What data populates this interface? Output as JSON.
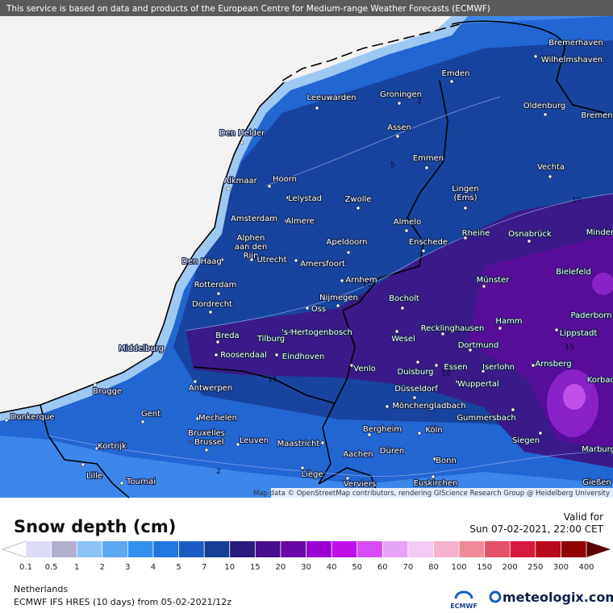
{
  "header": {
    "disclaimer": "This service is based on data and products of the European Centre for Medium-range Weather Forecasts (ECMWF)"
  },
  "map": {
    "cities": [
      {
        "lines": [
          "Bremerhaven"
        ]
      },
      {
        "lines": [
          "Wilhelmshaven"
        ]
      },
      {
        "lines": [
          "Emden"
        ]
      },
      {
        "lines": [
          "Leeuwarden"
        ]
      },
      {
        "lines": [
          "Groningen"
        ]
      },
      {
        "lines": [
          "Oldenburg"
        ]
      },
      {
        "lines": [
          "Bremen"
        ]
      },
      {
        "lines": [
          "Den Helder"
        ]
      },
      {
        "lines": [
          "Assen"
        ]
      },
      {
        "lines": [
          "Emmen"
        ]
      },
      {
        "lines": [
          "Vechta"
        ]
      },
      {
        "lines": [
          "Alkmaar"
        ]
      },
      {
        "lines": [
          "Hoorn"
        ]
      },
      {
        "lines": [
          "Lingen",
          "(Ems)"
        ]
      },
      {
        "lines": [
          "Lelystad"
        ]
      },
      {
        "lines": [
          "Zwolle"
        ]
      },
      {
        "lines": [
          "Amsterdam"
        ]
      },
      {
        "lines": [
          "Almere"
        ]
      },
      {
        "lines": [
          "Almelo"
        ]
      },
      {
        "lines": [
          "Rheine"
        ]
      },
      {
        "lines": [
          "Osnabrück"
        ]
      },
      {
        "lines": [
          "Minden"
        ]
      },
      {
        "lines": [
          "Alphen",
          "aan den",
          "Rijn"
        ]
      },
      {
        "lines": [
          "Apeldoorn"
        ]
      },
      {
        "lines": [
          "Enschede"
        ]
      },
      {
        "lines": [
          "Utrecht"
        ]
      },
      {
        "lines": [
          "Amersfoort"
        ]
      },
      {
        "lines": [
          "Den Haag"
        ]
      },
      {
        "lines": [
          "Bielefeld"
        ]
      },
      {
        "lines": [
          "Arnhem"
        ]
      },
      {
        "lines": [
          "Münster"
        ]
      },
      {
        "lines": [
          "Rotterdam"
        ]
      },
      {
        "lines": [
          "Nijmegen"
        ]
      },
      {
        "lines": [
          "Bocholt"
        ]
      },
      {
        "lines": [
          "Dordrecht"
        ]
      },
      {
        "lines": [
          "Oss"
        ]
      },
      {
        "lines": [
          "Paderborn"
        ]
      },
      {
        "lines": [
          "Hamm"
        ]
      },
      {
        "lines": [
          "Recklinghausen"
        ]
      },
      {
        "lines": [
          "'s-Hertogenbosch"
        ]
      },
      {
        "lines": [
          "Breda"
        ]
      },
      {
        "lines": [
          "Tilburg"
        ]
      },
      {
        "lines": [
          "Wesel"
        ]
      },
      {
        "lines": [
          "Lippstadt"
        ]
      },
      {
        "lines": [
          "Middelburg"
        ]
      },
      {
        "lines": [
          "Dortmund"
        ]
      },
      {
        "lines": [
          "Roosendaal"
        ]
      },
      {
        "lines": [
          "Eindhoven"
        ]
      },
      {
        "lines": [
          "Essen"
        ]
      },
      {
        "lines": [
          "Iserlohn"
        ]
      },
      {
        "lines": [
          "Arnsberg"
        ]
      },
      {
        "lines": [
          "Venlo"
        ]
      },
      {
        "lines": [
          "Duisburg"
        ]
      },
      {
        "lines": [
          "Korbach"
        ]
      },
      {
        "lines": [
          "Wuppertal"
        ]
      },
      {
        "lines": [
          "Brugge"
        ]
      },
      {
        "lines": [
          "Antwerpen"
        ]
      },
      {
        "lines": [
          "Düsseldorf"
        ]
      },
      {
        "lines": [
          "Mönchengladbach"
        ]
      },
      {
        "lines": [
          "Dunkerque"
        ]
      },
      {
        "lines": [
          "Gent"
        ]
      },
      {
        "lines": [
          "Mechelen"
        ]
      },
      {
        "lines": [
          "Gummersbach"
        ]
      },
      {
        "lines": [
          "Bruxelles",
          "- Brussel"
        ]
      },
      {
        "lines": [
          "Leuven"
        ]
      },
      {
        "lines": [
          "Maastricht"
        ]
      },
      {
        "lines": [
          "Bergheim"
        ]
      },
      {
        "lines": [
          "Köln"
        ]
      },
      {
        "lines": [
          "Siegen"
        ]
      },
      {
        "lines": [
          "Marburg"
        ]
      },
      {
        "lines": [
          "Kortrijk"
        ]
      },
      {
        "lines": [
          "Aachen"
        ]
      },
      {
        "lines": [
          "Düren"
        ]
      },
      {
        "lines": [
          "Bonn"
        ]
      },
      {
        "lines": [
          "Lille"
        ]
      },
      {
        "lines": [
          "Tournai"
        ]
      },
      {
        "lines": [
          "Liège"
        ]
      },
      {
        "lines": [
          "Verviers"
        ]
      },
      {
        "lines": [
          "Euskirchen"
        ]
      },
      {
        "lines": [
          "Gießen"
        ]
      }
    ],
    "contour_labels": [
      2,
      5,
      10,
      10,
      15,
      10,
      15,
      2
    ],
    "attribution": "Map data © OpenStreetMap contributors, rendering GIScience Research Group @ Heidelberg University"
  },
  "legend": {
    "title": "Snow depth (cm)",
    "valid_label": "Valid for",
    "valid_time": "Sun 07-02-2021, 22:00 CET",
    "levels": [
      0.1,
      0.5,
      1,
      2,
      3,
      4,
      5,
      7,
      10,
      15,
      20,
      30,
      40,
      50,
      60,
      70,
      80,
      100,
      150,
      200,
      250,
      300,
      400
    ],
    "colors": [
      "#dcdcf6",
      "#aeb0cc",
      "#8cc2f6",
      "#5ca8f0",
      "#3490ee",
      "#2176e0",
      "#1a5cc4",
      "#163f96",
      "#2a1c7e",
      "#470e8e",
      "#6a08a6",
      "#9a00d0",
      "#c010ea",
      "#d64cf2",
      "#e6a2f4",
      "#f2cbf4",
      "#f6b2cc",
      "#f08a9a",
      "#e65068",
      "#d61a40",
      "#b80a1a",
      "#900404"
    ],
    "under_color": "#ffffff",
    "over_color": "#5c0000"
  },
  "footer": {
    "region": "Netherlands",
    "model": "ECMWF IFS HRES (10 days) from 05-02-2021/12z",
    "ecmwf_logo": "ECMWF",
    "brand": "meteologix.com"
  }
}
